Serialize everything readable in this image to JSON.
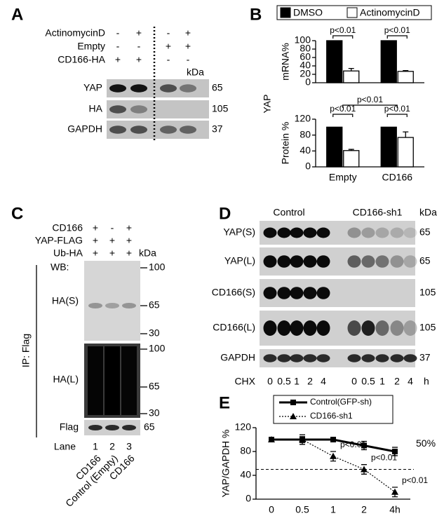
{
  "panel_labels": [
    "A",
    "B",
    "C",
    "D",
    "E"
  ],
  "panel_a": {
    "conditions": [
      {
        "label": "ActinomycinD",
        "signs": [
          "-",
          "+",
          "-",
          "+"
        ]
      },
      {
        "label": "Empty",
        "signs": [
          "-",
          "-",
          "+",
          "+"
        ]
      },
      {
        "label": "CD166-HA",
        "signs": [
          "+",
          "+",
          "-",
          "-"
        ]
      }
    ],
    "kda": "kDa",
    "blots": [
      {
        "label": "YAP",
        "kda": "65"
      },
      {
        "label": "HA",
        "kda": "105"
      },
      {
        "label": "GAPDH",
        "kda": "37"
      }
    ]
  },
  "panel_b": {
    "ylabel": "YAP"
  },
  "panel_c": {
    "conditions": [
      {
        "label": "CD166",
        "signs": [
          "+",
          "-",
          "+"
        ]
      },
      {
        "label": "YAP-FLAG",
        "signs": [
          "+",
          "+",
          "+"
        ]
      },
      {
        "label": "Ub-HA",
        "signs": [
          "+",
          "+",
          "+"
        ]
      }
    ],
    "kda": "kDa",
    "wb": "WB:",
    "ip": "IP: Flag",
    "blots": [
      {
        "label": "HA(S)",
        "markers": [
          "100",
          "65",
          "30"
        ]
      },
      {
        "label": "HA(L)",
        "markers": [
          "100",
          "65",
          "30"
        ]
      },
      {
        "label": "Flag",
        "markers": [
          "65"
        ]
      }
    ],
    "lane_label": "Lane",
    "lanes": [
      "1",
      "2",
      "3"
    ],
    "samples": [
      "CD166",
      "Control (Empty)",
      "CD166"
    ]
  },
  "panel_d": {
    "groups": [
      "Control",
      "CD166-sh1"
    ],
    "kda": "kDa",
    "blots": [
      {
        "label": "YAP(S)",
        "kda": "65"
      },
      {
        "label": "YAP(L)",
        "kda": "65"
      },
      {
        "label": "CD166(S)",
        "kda": "105"
      },
      {
        "label": "CD166(L)",
        "kda": "105"
      },
      {
        "label": "GAPDH",
        "kda": "37"
      }
    ],
    "time_label": "CHX",
    "times": [
      "0",
      "0.5",
      "1",
      "2",
      "4",
      "0",
      "0.5",
      "1",
      "2",
      "4"
    ],
    "time_unit": "h"
  },
  "chart_data": [
    {
      "type": "bar",
      "ylabel": "mRNA%",
      "categories": [
        null,
        null
      ],
      "series": [
        {
          "name": "DMSO",
          "color": "#000000",
          "values": [
            100,
            100
          ]
        },
        {
          "name": "ActinomycinD",
          "color": "#ffffff",
          "values": [
            28,
            27
          ],
          "errors": [
            6,
            2
          ]
        }
      ],
      "ylim": [
        0,
        100
      ],
      "yticks": [
        0,
        20,
        40,
        60,
        80,
        100
      ],
      "annotations": [
        "p<0.01",
        "p<0.01"
      ]
    },
    {
      "type": "bar",
      "ylabel": "Protein %",
      "categories": [
        "Empty",
        "CD166"
      ],
      "series": [
        {
          "color": "#000000",
          "values": [
            100,
            100
          ]
        },
        {
          "color": "#ffffff",
          "values": [
            41,
            74
          ],
          "errors": [
            3,
            14
          ]
        }
      ],
      "ylim": [
        0,
        120
      ],
      "yticks": [
        0,
        40,
        80,
        120
      ],
      "annotations": [
        "p<0.01",
        "p<0.01",
        "p<0.01"
      ]
    },
    {
      "type": "line",
      "ylabel": "YAP/GAPDH %",
      "categories": [
        "0",
        "0.5",
        "1",
        "2",
        "4h"
      ],
      "series": [
        {
          "name": "Control(GFP-sh)",
          "color": "#000000",
          "line_style": "solid",
          "marker": "square",
          "values": [
            100,
            100,
            100,
            90,
            80
          ],
          "errors": [
            3,
            8,
            4,
            7,
            7
          ]
        },
        {
          "name": "CD166-sh1",
          "color": "#000000",
          "line_style": "dotted",
          "marker": "triangle",
          "values": [
            100,
            100,
            72,
            50,
            12
          ],
          "errors": [
            2,
            5,
            8,
            8,
            8
          ]
        }
      ],
      "ylim": [
        0,
        120
      ],
      "yticks": [
        0,
        40,
        80,
        120
      ],
      "reference_line": {
        "value": 50,
        "label": "50%"
      },
      "annotations": [
        "p<0.01",
        "p<0.01",
        "p<0.01"
      ]
    }
  ]
}
